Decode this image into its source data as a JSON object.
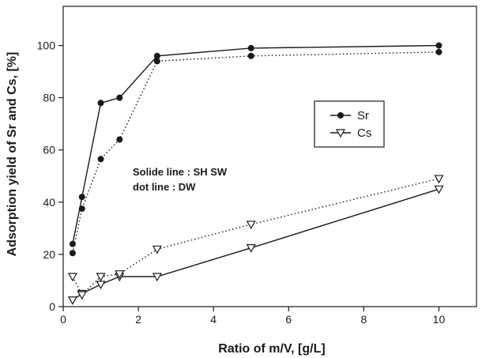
{
  "chart_data": {
    "type": "line",
    "xlabel": "Ratio of m/V, [g/L]",
    "ylabel": "Adsorption yield of Sr and Cs, [%]",
    "xlim": [
      0,
      11
    ],
    "ylim": [
      0,
      115
    ],
    "xticks": [
      "0",
      "2",
      "4",
      "6",
      "8",
      "10"
    ],
    "yticks": [
      "0",
      "20",
      "40",
      "60",
      "80",
      "100"
    ],
    "legend_position": "right-middle",
    "grid": false,
    "annotations": [
      "Solide line : SH SW",
      "dot line : DW"
    ],
    "legend": [
      {
        "label": "Sr",
        "marker": "filled-circle"
      },
      {
        "label": "Cs",
        "marker": "open-triangle-down"
      }
    ],
    "series": [
      {
        "element": "Sr",
        "style": "solid",
        "marker": "filled-circle",
        "x": [
          0.25,
          0.5,
          1.0,
          1.5,
          2.5,
          5.0,
          10.0
        ],
        "y": [
          24,
          42,
          78,
          80,
          96,
          99,
          100
        ]
      },
      {
        "element": "Sr",
        "style": "dotted",
        "marker": "filled-circle",
        "x": [
          0.25,
          0.5,
          1.0,
          1.5,
          2.5,
          5.0,
          10.0
        ],
        "y": [
          20.5,
          37.5,
          56.5,
          64,
          94,
          96,
          97.5
        ]
      },
      {
        "element": "Cs",
        "style": "solid",
        "marker": "open-triangle-down",
        "x": [
          0.25,
          0.5,
          1.0,
          1.5,
          2.5,
          5.0,
          10.0
        ],
        "y": [
          2.5,
          5,
          8.5,
          11.5,
          11.5,
          22.5,
          45
        ]
      },
      {
        "element": "Cs",
        "style": "dotted",
        "marker": "open-triangle-down",
        "x": [
          0.25,
          0.5,
          1.0,
          1.5,
          2.5,
          5.0,
          10.0
        ],
        "y": [
          11.5,
          4.5,
          11.5,
          12.5,
          22,
          31.5,
          49
        ]
      }
    ]
  }
}
